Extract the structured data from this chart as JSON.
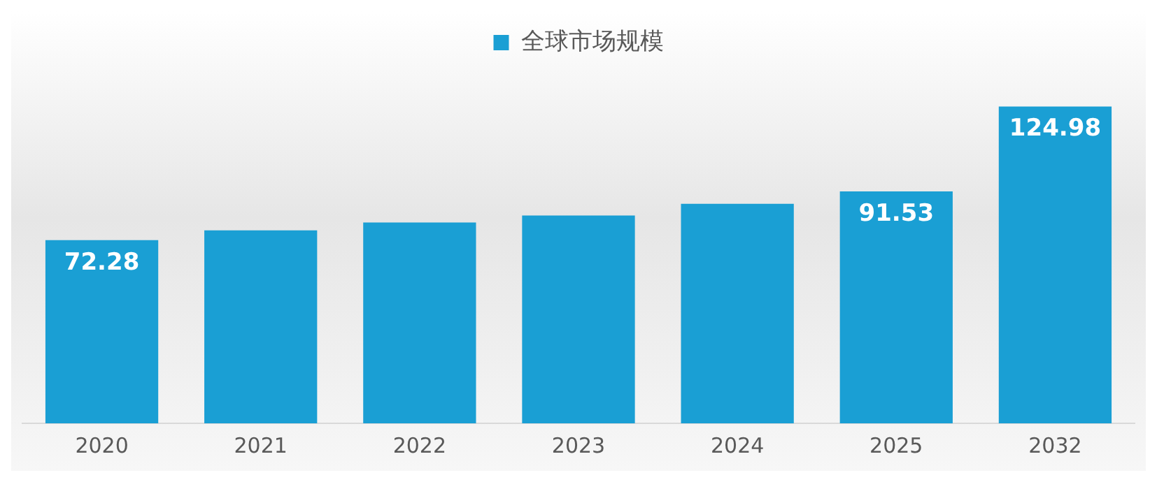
{
  "chart_data": {
    "type": "bar",
    "categories": [
      "2020",
      "2021",
      "2022",
      "2023",
      "2024",
      "2025",
      "2032"
    ],
    "series": [
      {
        "name": "全球市场规模",
        "color": "#1a9fd4",
        "values": [
          72.28,
          76.1,
          79.2,
          82.0,
          86.6,
          91.53,
          124.98
        ],
        "value_labels": [
          "72.28",
          null,
          null,
          null,
          null,
          "91.53",
          "124.98"
        ]
      }
    ],
    "legend": "top",
    "grid": false
  }
}
